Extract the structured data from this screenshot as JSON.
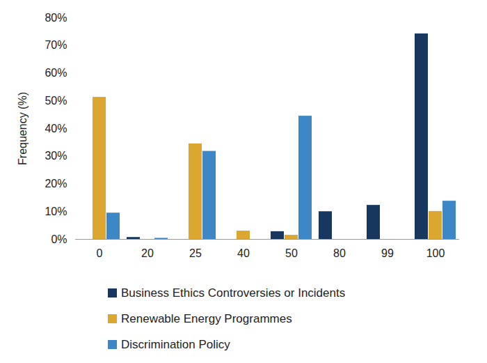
{
  "chart_data": {
    "type": "bar",
    "y_label": "Frequency (%)",
    "categories": [
      "0",
      "20",
      "25",
      "40",
      "50",
      "80",
      "99",
      "100"
    ],
    "series": [
      {
        "name": "Business Ethics Controversies or Incidents",
        "color": "#17375e",
        "values": [
          0,
          0.7,
          0,
          0,
          2.8,
          10,
          12.3,
          74.2
        ]
      },
      {
        "name": "Renewable Energy Programmes",
        "color": "#dba730",
        "values": [
          51.3,
          0,
          34.5,
          3,
          1.5,
          0,
          0,
          10.1
        ]
      },
      {
        "name": "Discrimination Policy",
        "color": "#3e87c7",
        "values": [
          9.5,
          0.4,
          31.8,
          0,
          44.5,
          0,
          0,
          13.8
        ]
      }
    ],
    "ylim": [
      0,
      80
    ],
    "yticks": [
      {
        "value": 0,
        "label": "0%"
      },
      {
        "value": 10,
        "label": "10%"
      },
      {
        "value": 20,
        "label": "20%"
      },
      {
        "value": 30,
        "label": "30%"
      },
      {
        "value": 40,
        "label": "40%"
      },
      {
        "value": 50,
        "label": "50%"
      },
      {
        "value": 60,
        "label": "60%"
      },
      {
        "value": 70,
        "label": "70%"
      },
      {
        "value": 80,
        "label": "80%"
      }
    ],
    "grid": false,
    "legend": "bottom"
  }
}
